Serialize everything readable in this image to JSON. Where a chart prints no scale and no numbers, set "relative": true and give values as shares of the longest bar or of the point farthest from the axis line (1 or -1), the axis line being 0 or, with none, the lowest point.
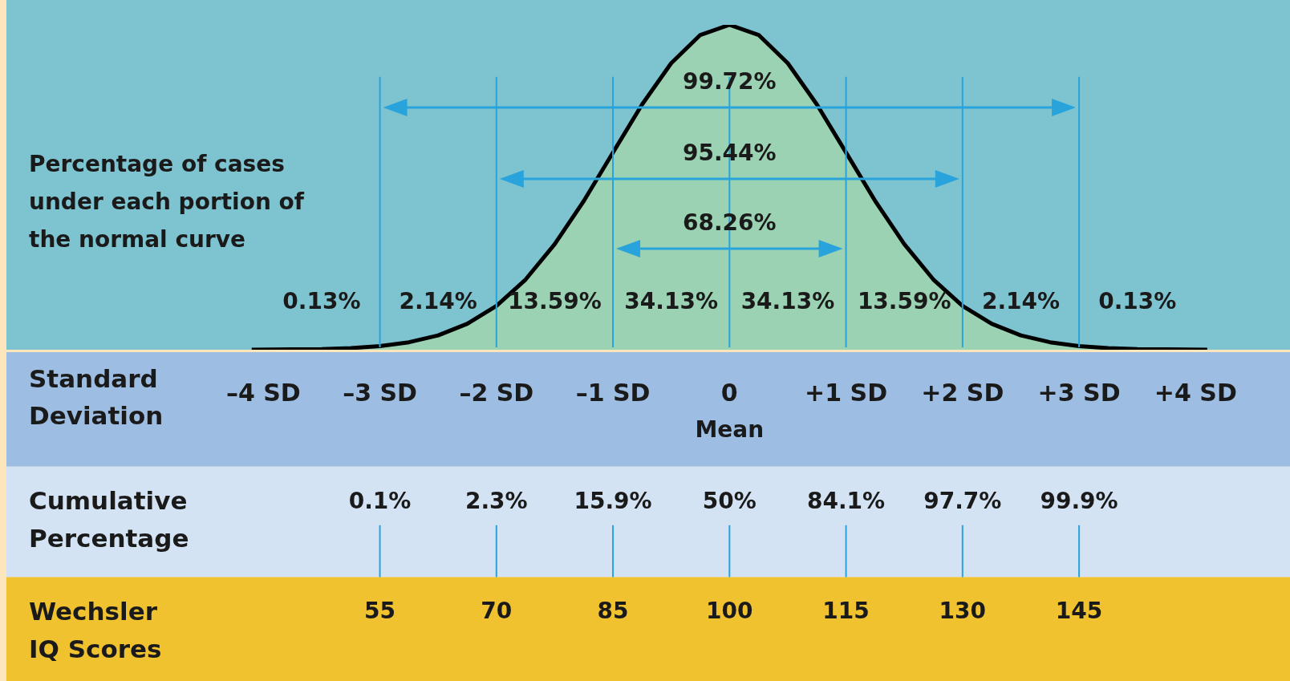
{
  "chart_data": {
    "type": "area",
    "relative": true,
    "xlabel": "Standard Deviation",
    "x": [
      -4.1,
      -3.75,
      -3.5,
      -3.25,
      -3,
      -2.75,
      -2.5,
      -2.25,
      -2,
      -1.75,
      -1.5,
      -1.25,
      -1,
      -0.75,
      -0.5,
      -0.25,
      0,
      0.25,
      0.5,
      0.75,
      1,
      1.25,
      1.5,
      1.75,
      2,
      2.25,
      2.5,
      2.75,
      3,
      3.25,
      3.5,
      3.75,
      4.1
    ],
    "series": [
      {
        "color": "#000000",
        "values": [
          0,
          0.001,
          0.002,
          0.005,
          0.011,
          0.023,
          0.044,
          0.08,
          0.135,
          0.216,
          0.325,
          0.458,
          0.607,
          0.755,
          0.882,
          0.969,
          1,
          0.969,
          0.882,
          0.755,
          0.607,
          0.458,
          0.325,
          0.216,
          0.135,
          0.08,
          0.044,
          0.023,
          0.011,
          0.005,
          0.002,
          0.001,
          0
        ]
      }
    ],
    "xlim": [
      -6.26,
      4.81
    ],
    "xticks": [
      {
        "value": -4,
        "label": "–4 SD"
      },
      {
        "value": -3,
        "label": "–3 SD"
      },
      {
        "value": -2,
        "label": "–2 SD"
      },
      {
        "value": -1,
        "label": "–1 SD"
      },
      0,
      {
        "value": 1,
        "label": "+1 SD"
      },
      {
        "value": 2,
        "label": "+2 SD"
      },
      {
        "value": 3,
        "label": "+3 SD"
      },
      {
        "value": 4,
        "label": "+4 SD"
      }
    ],
    "grid": false,
    "legend": false,
    "ref_lines": [
      {
        "axis": "x",
        "value": -3,
        "color": "#29a3dc"
      },
      {
        "axis": "x",
        "value": -2,
        "color": "#29a3dc"
      },
      {
        "axis": "x",
        "value": -1,
        "color": "#29a3dc"
      },
      {
        "axis": "x",
        "value": 0,
        "color": "#29a3dc"
      },
      {
        "axis": "x",
        "value": 1,
        "color": "#29a3dc"
      },
      {
        "axis": "x",
        "value": 2,
        "color": "#29a3dc"
      },
      {
        "axis": "x",
        "value": 3,
        "color": "#29a3dc"
      }
    ],
    "annotations": [
      "Percentage of cases under each portion of the normal curve",
      "99.72%",
      "95.44%",
      "68.26%",
      "0.13%",
      "2.14%",
      "13.59%",
      "34.13%",
      "34.13%",
      "13.59%",
      "2.14%",
      "0.13%",
      "Mean",
      "Cumulative Percentage",
      "0.1%",
      "2.3%",
      "15.9%",
      "50%",
      "84.1%",
      "97.7%",
      "99.9%",
      "Wechsler IQ Scores",
      "55",
      "70",
      "85",
      "100",
      "115",
      "130",
      "145"
    ]
  }
}
